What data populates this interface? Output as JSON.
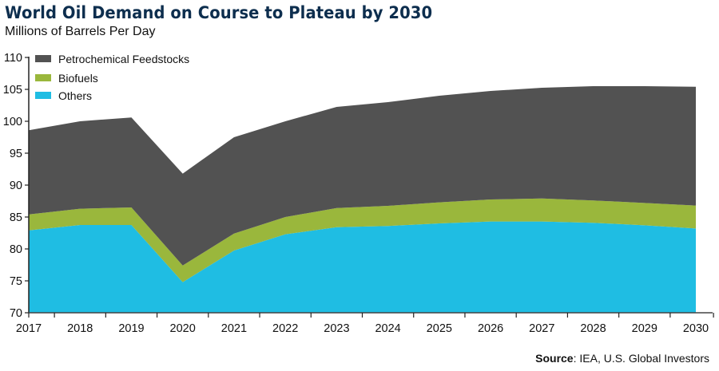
{
  "header": {
    "title": "World Oil Demand on Course to Plateau by 2030",
    "subtitle": "Millions of Barrels Per Day"
  },
  "footer": {
    "source_label": "Source",
    "source_text": ": IEA, U.S. Global Investors"
  },
  "colors": {
    "title": "#0d2e4e",
    "petrochemical": "#525252",
    "biofuels": "#9ab73c",
    "others": "#1fbde3",
    "axis": "#222222"
  },
  "chart_data": {
    "type": "area",
    "stacked": true,
    "title": "World Oil Demand on Course to Plateau by 2030",
    "subtitle": "Millions of Barrels Per Day",
    "xlabel": "",
    "ylabel": "",
    "ylim": [
      70,
      110
    ],
    "yticks": [
      70,
      75,
      80,
      85,
      90,
      95,
      100,
      105,
      110
    ],
    "grid": false,
    "legend_position": "top-left",
    "categories": [
      "2017",
      "2018",
      "2019",
      "2020",
      "2021",
      "2022",
      "2023",
      "2024",
      "2025",
      "2026",
      "2027",
      "2028",
      "2029",
      "2030"
    ],
    "cumulative_top": {
      "others": [
        82.9,
        83.75,
        83.75,
        74.8,
        79.75,
        82.3,
        83.4,
        83.6,
        84.0,
        84.3,
        84.3,
        84.1,
        83.7,
        83.2
      ],
      "biofuels": [
        85.4,
        86.3,
        86.5,
        77.4,
        82.4,
        85.0,
        86.4,
        86.75,
        87.3,
        87.75,
        87.9,
        87.6,
        87.2,
        86.8
      ],
      "petrochemical": [
        98.6,
        100.0,
        100.6,
        91.8,
        97.5,
        100.0,
        102.25,
        103.0,
        104.0,
        104.75,
        105.25,
        105.5,
        105.5,
        105.4
      ]
    },
    "series": [
      {
        "name": "Petrochemical Feedstocks",
        "key": "petrochemical",
        "values": [
          13.2,
          13.7,
          14.1,
          14.4,
          15.1,
          15.0,
          15.85,
          16.25,
          16.7,
          17.0,
          17.35,
          17.9,
          18.3,
          18.6
        ]
      },
      {
        "name": "Biofuels",
        "key": "biofuels",
        "values": [
          2.5,
          2.55,
          2.75,
          2.6,
          2.65,
          2.7,
          3.0,
          3.15,
          3.3,
          3.45,
          3.6,
          3.5,
          3.5,
          3.6
        ]
      },
      {
        "name": "Others",
        "key": "others",
        "values": [
          82.9,
          83.75,
          83.75,
          74.8,
          79.75,
          82.3,
          83.4,
          83.6,
          84.0,
          84.3,
          84.3,
          84.1,
          83.7,
          83.2
        ]
      }
    ],
    "source": "Source: IEA, U.S. Global Investors"
  }
}
